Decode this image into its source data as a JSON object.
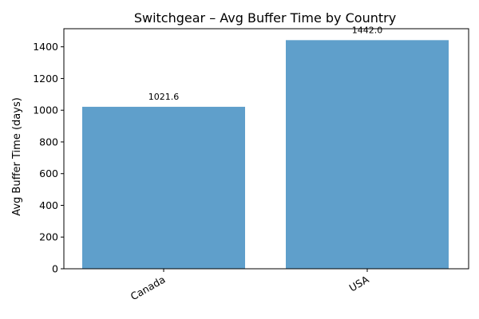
{
  "chart_data": {
    "type": "bar",
    "title": "Switchgear – Avg Buffer Time by Country",
    "xlabel": "",
    "ylabel": "Avg Buffer Time (days)",
    "categories": [
      "Canada",
      "USA"
    ],
    "values": [
      1021.6,
      1442.0
    ],
    "data_labels": [
      "1021.6",
      "1442.0"
    ],
    "ylim": [
      0,
      1514.1
    ],
    "yticks": [
      0,
      200,
      400,
      600,
      800,
      1000,
      1200,
      1400
    ],
    "ytick_labels": [
      "0",
      "200",
      "400",
      "600",
      "800",
      "1000",
      "1200",
      "1400"
    ],
    "bar_color": "#5f9fcb",
    "grid": false,
    "legend": "none"
  }
}
